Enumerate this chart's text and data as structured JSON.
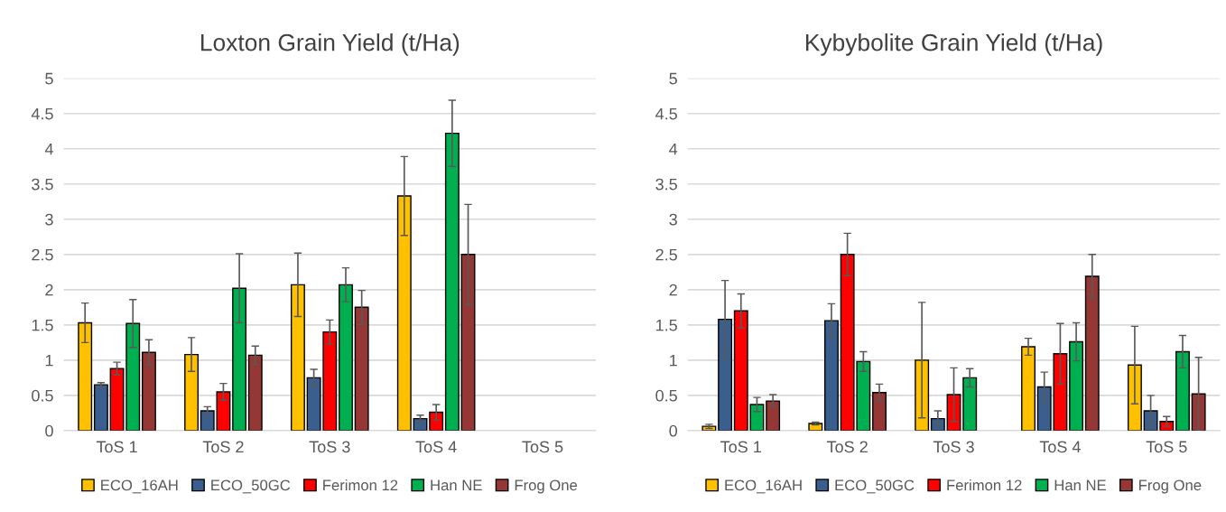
{
  "chart_data": [
    {
      "type": "bar",
      "title": "Loxton Grain Yield (t/Ha)",
      "categories": [
        "ToS 1",
        "ToS 2",
        "ToS 3",
        "ToS 4",
        "ToS 5"
      ],
      "ylim": [
        0,
        5
      ],
      "yticks": [
        0,
        0.5,
        1,
        1.5,
        2,
        2.5,
        3,
        3.5,
        4,
        4.5,
        5
      ],
      "grid": "y",
      "legend": "bottom",
      "series": [
        {
          "name": "ECO_16AH",
          "color": "#ffc000",
          "values": [
            1.53,
            1.08,
            2.07,
            3.33,
            null
          ],
          "errors": [
            0.28,
            0.24,
            0.45,
            0.56,
            null
          ]
        },
        {
          "name": "ECO_50GC",
          "color": "#3a5f8f",
          "values": [
            0.65,
            0.28,
            0.75,
            0.17,
            null
          ],
          "errors": [
            0.03,
            0.06,
            0.12,
            0.05,
            null
          ]
        },
        {
          "name": "Ferimon 12",
          "color": "#ff0000",
          "values": [
            0.88,
            0.55,
            1.4,
            0.26,
            null
          ],
          "errors": [
            0.09,
            0.12,
            0.17,
            0.11,
            null
          ]
        },
        {
          "name": "Han NE",
          "color": "#00b050",
          "values": [
            1.52,
            2.02,
            2.07,
            4.22,
            null
          ],
          "errors": [
            0.34,
            0.49,
            0.24,
            0.47,
            null
          ]
        },
        {
          "name": "Frog One",
          "color": "#953735",
          "values": [
            1.11,
            1.07,
            1.75,
            2.5,
            null
          ],
          "errors": [
            0.18,
            0.13,
            0.24,
            0.71,
            null
          ]
        }
      ]
    },
    {
      "type": "bar",
      "title": "Kybybolite Grain Yield (t/Ha)",
      "categories": [
        "ToS 1",
        "ToS 2",
        "ToS 3",
        "ToS 4",
        "ToS 5"
      ],
      "ylim": [
        0,
        5
      ],
      "yticks": [
        0,
        0.5,
        1,
        1.5,
        2,
        2.5,
        3,
        3.5,
        4,
        4.5,
        5
      ],
      "grid": "y",
      "legend": "bottom",
      "series": [
        {
          "name": "ECO_16AH",
          "color": "#ffc000",
          "values": [
            0.06,
            0.1,
            1.0,
            1.19,
            0.93
          ],
          "errors": [
            0.03,
            0.02,
            0.82,
            0.12,
            0.55
          ]
        },
        {
          "name": "ECO_50GC",
          "color": "#3a5f8f",
          "values": [
            1.58,
            1.56,
            0.17,
            0.62,
            0.28
          ],
          "errors": [
            0.55,
            0.24,
            0.11,
            0.21,
            0.22
          ]
        },
        {
          "name": "Ferimon 12",
          "color": "#ff0000",
          "values": [
            1.7,
            2.5,
            0.51,
            1.09,
            0.13
          ],
          "errors": [
            0.24,
            0.3,
            0.38,
            0.43,
            0.07
          ]
        },
        {
          "name": "Han NE",
          "color": "#00b050",
          "values": [
            0.37,
            0.98,
            0.75,
            1.26,
            1.12
          ],
          "errors": [
            0.1,
            0.14,
            0.13,
            0.27,
            0.23
          ]
        },
        {
          "name": "Frog One",
          "color": "#953735",
          "values": [
            0.42,
            0.54,
            null,
            2.19,
            0.52
          ],
          "errors": [
            0.09,
            0.12,
            null,
            0.31,
            0.52
          ]
        }
      ]
    }
  ]
}
